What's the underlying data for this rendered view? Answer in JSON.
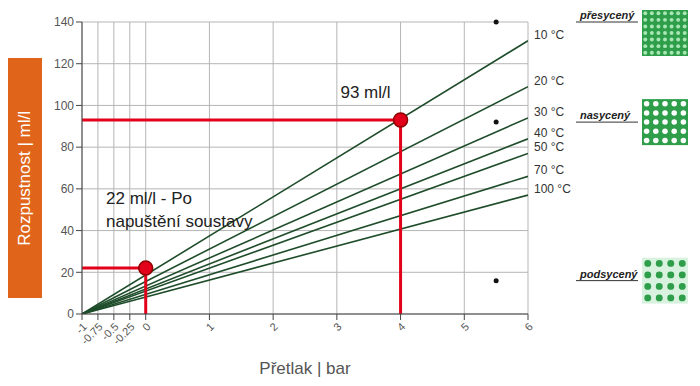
{
  "chart_data": {
    "type": "line",
    "x_label": "Přetlak | bar",
    "y_label": "Rozpustnost | ml/l",
    "xlim": [
      -1,
      6
    ],
    "xticks": [
      -1,
      -0.75,
      -0.5,
      -0.25,
      0,
      1,
      2,
      3,
      4,
      5,
      6
    ],
    "ylim": [
      0,
      140
    ],
    "yticks": [
      0,
      20,
      40,
      60,
      80,
      100,
      120,
      140
    ],
    "grid": true,
    "x": [
      -1,
      6
    ],
    "series": [
      {
        "name": "10 °C",
        "color": "#1f4d2b",
        "values": [
          0,
          131
        ]
      },
      {
        "name": "20 °C",
        "color": "#1f4d2b",
        "values": [
          0,
          109
        ]
      },
      {
        "name": "30 °C",
        "color": "#1f4d2b",
        "values": [
          0,
          94
        ]
      },
      {
        "name": "40 °C",
        "color": "#1f4d2b",
        "values": [
          0,
          84
        ]
      },
      {
        "name": "50 °C",
        "color": "#1f4d2b",
        "values": [
          0,
          77
        ]
      },
      {
        "name": "70 °C",
        "color": "#1f4d2b",
        "values": [
          0,
          66
        ]
      },
      {
        "name": "100 °C",
        "color": "#1f4d2b",
        "values": [
          0,
          57
        ]
      }
    ],
    "annotations": [
      {
        "text": [
          "93 ml/l"
        ],
        "x": 4,
        "y": 93,
        "color": "#e3001b"
      },
      {
        "text": [
          "22 ml/l - Po",
          "napuštění soustavy"
        ],
        "x": 0,
        "y": 22,
        "color": "#e3001b"
      }
    ],
    "regions": [
      {
        "label": "přesycený",
        "x": 5.5,
        "y": 140
      },
      {
        "label": "nasycený",
        "x": 5.5,
        "y": 92
      },
      {
        "label": "podsycený",
        "x": 5.5,
        "y": 16
      }
    ]
  }
}
